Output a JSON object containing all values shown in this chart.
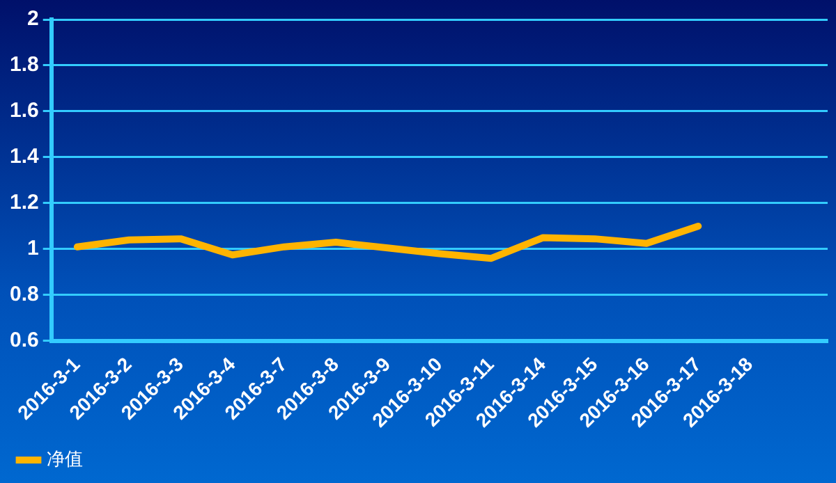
{
  "chart_data": {
    "type": "line",
    "categories": [
      "2016-3-1",
      "2016-3-2",
      "2016-3-3",
      "2016-3-4",
      "2016-3-7",
      "2016-3-8",
      "2016-3-9",
      "2016-3-10",
      "2016-3-11",
      "2016-3-14",
      "2016-3-15",
      "2016-3-16",
      "2016-3-17",
      "2016-3-18",
      null
    ],
    "series": [
      {
        "name": "净值",
        "color": "#ffb400",
        "values": [
          1.01,
          1.04,
          1.045,
          0.975,
          1.01,
          1.03,
          1.005,
          0.98,
          0.96,
          1.05,
          1.045,
          1.025,
          1.1,
          null,
          null
        ]
      }
    ],
    "ylim": [
      0.6,
      2
    ],
    "yticks": [
      {
        "value": 0.6,
        "label": "0.6"
      },
      {
        "value": 0.8,
        "label": "0.8"
      },
      {
        "value": 1,
        "label": "1"
      },
      {
        "value": 1.2,
        "label": "1.2"
      },
      {
        "value": 1.4,
        "label": "1.4"
      },
      {
        "value": 1.6,
        "label": "1.6"
      },
      {
        "value": 1.8,
        "label": "1.8"
      },
      {
        "value": 2,
        "label": "2"
      }
    ],
    "grid": "y",
    "legend": "bottom left",
    "marker": "none",
    "line_style": "solid"
  }
}
